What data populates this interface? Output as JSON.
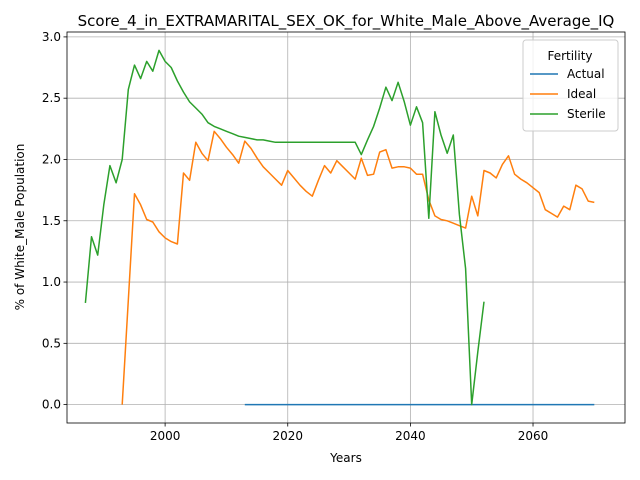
{
  "chart_data": {
    "type": "line",
    "title": "Score_4_in_EXTRAMARITAL_SEX_OK_for_White_Male_Above_Average_IQ",
    "xlabel": "Years",
    "ylabel": "% of White_Male Population",
    "xlim": [
      1984,
      2075
    ],
    "ylim": [
      -0.15,
      3.04
    ],
    "xticks": [
      2000,
      2020,
      2040,
      2060
    ],
    "yticks": [
      0.0,
      0.5,
      1.0,
      1.5,
      2.0,
      2.5,
      3.0
    ],
    "xtick_labels": [
      "2000",
      "2020",
      "2040",
      "2060"
    ],
    "ytick_labels": [
      "0.0",
      "0.5",
      "1.0",
      "1.5",
      "2.0",
      "2.5",
      "3.0"
    ],
    "grid": true,
    "legend": {
      "title": "Fertility",
      "position": "top-right"
    },
    "series": [
      {
        "name": "Actual",
        "color": "#1f77b4",
        "points": [
          [
            2013,
            0.0
          ],
          [
            2070,
            0.0
          ]
        ]
      },
      {
        "name": "Ideal",
        "color": "#ff7f0e",
        "points": [
          [
            1993,
            0.0
          ],
          [
            1994,
            0.85
          ],
          [
            1995,
            1.72
          ],
          [
            1996,
            1.63
          ],
          [
            1997,
            1.51
          ],
          [
            1998,
            1.49
          ],
          [
            1999,
            1.41
          ],
          [
            2000,
            1.36
          ],
          [
            2001,
            1.33
          ],
          [
            2002,
            1.31
          ],
          [
            2003,
            1.89
          ],
          [
            2004,
            1.83
          ],
          [
            2005,
            2.14
          ],
          [
            2006,
            2.05
          ],
          [
            2007,
            1.99
          ],
          [
            2008,
            2.23
          ],
          [
            2009,
            2.17
          ],
          [
            2010,
            2.1
          ],
          [
            2011,
            2.04
          ],
          [
            2012,
            1.97
          ],
          [
            2013,
            2.15
          ],
          [
            2014,
            2.09
          ],
          [
            2015,
            2.01
          ],
          [
            2016,
            1.94
          ],
          [
            2017,
            1.89
          ],
          [
            2018,
            1.84
          ],
          [
            2019,
            1.79
          ],
          [
            2020,
            1.91
          ],
          [
            2021,
            1.85
          ],
          [
            2022,
            1.79
          ],
          [
            2023,
            1.74
          ],
          [
            2024,
            1.7
          ],
          [
            2025,
            1.83
          ],
          [
            2026,
            1.95
          ],
          [
            2027,
            1.89
          ],
          [
            2028,
            1.99
          ],
          [
            2029,
            1.94
          ],
          [
            2030,
            1.89
          ],
          [
            2031,
            1.84
          ],
          [
            2032,
            2.01
          ],
          [
            2033,
            1.87
          ],
          [
            2034,
            1.88
          ],
          [
            2035,
            2.06
          ],
          [
            2036,
            2.08
          ],
          [
            2037,
            1.93
          ],
          [
            2038,
            1.94
          ],
          [
            2039,
            1.94
          ],
          [
            2040,
            1.93
          ],
          [
            2041,
            1.88
          ],
          [
            2042,
            1.88
          ],
          [
            2043,
            1.67
          ],
          [
            2044,
            1.54
          ],
          [
            2045,
            1.51
          ],
          [
            2046,
            1.5
          ],
          [
            2047,
            1.48
          ],
          [
            2048,
            1.46
          ],
          [
            2049,
            1.44
          ],
          [
            2050,
            1.7
          ],
          [
            2051,
            1.54
          ],
          [
            2052,
            1.91
          ],
          [
            2053,
            1.89
          ],
          [
            2054,
            1.85
          ],
          [
            2055,
            1.96
          ],
          [
            2056,
            2.03
          ],
          [
            2057,
            1.88
          ],
          [
            2058,
            1.84
          ],
          [
            2059,
            1.81
          ],
          [
            2060,
            1.77
          ],
          [
            2061,
            1.73
          ],
          [
            2062,
            1.59
          ],
          [
            2063,
            1.56
          ],
          [
            2064,
            1.53
          ],
          [
            2065,
            1.62
          ],
          [
            2066,
            1.59
          ],
          [
            2067,
            1.79
          ],
          [
            2068,
            1.76
          ],
          [
            2069,
            1.66
          ],
          [
            2070,
            1.65
          ]
        ]
      },
      {
        "name": "Sterile",
        "color": "#2ca02c",
        "points": [
          [
            1987,
            0.83
          ],
          [
            1988,
            1.37
          ],
          [
            1989,
            1.22
          ],
          [
            1990,
            1.63
          ],
          [
            1991,
            1.95
          ],
          [
            1992,
            1.81
          ],
          [
            1993,
            2.0
          ],
          [
            1994,
            2.57
          ],
          [
            1995,
            2.77
          ],
          [
            1996,
            2.66
          ],
          [
            1997,
            2.8
          ],
          [
            1998,
            2.72
          ],
          [
            1999,
            2.89
          ],
          [
            2000,
            2.8
          ],
          [
            2001,
            2.75
          ],
          [
            2002,
            2.64
          ],
          [
            2003,
            2.55
          ],
          [
            2004,
            2.47
          ],
          [
            2005,
            2.42
          ],
          [
            2006,
            2.37
          ],
          [
            2007,
            2.3
          ],
          [
            2008,
            2.27
          ],
          [
            2009,
            2.25
          ],
          [
            2010,
            2.23
          ],
          [
            2011,
            2.21
          ],
          [
            2012,
            2.19
          ],
          [
            2013,
            2.18
          ],
          [
            2014,
            2.17
          ],
          [
            2015,
            2.16
          ],
          [
            2016,
            2.16
          ],
          [
            2017,
            2.15
          ],
          [
            2018,
            2.14
          ],
          [
            2020,
            2.14
          ],
          [
            2025,
            2.14
          ],
          [
            2030,
            2.14
          ],
          [
            2031,
            2.14
          ],
          [
            2032,
            2.04
          ],
          [
            2033,
            2.16
          ],
          [
            2034,
            2.27
          ],
          [
            2035,
            2.42
          ],
          [
            2036,
            2.59
          ],
          [
            2037,
            2.48
          ],
          [
            2038,
            2.63
          ],
          [
            2039,
            2.47
          ],
          [
            2040,
            2.28
          ],
          [
            2041,
            2.43
          ],
          [
            2042,
            2.3
          ],
          [
            2043,
            1.52
          ],
          [
            2044,
            2.39
          ],
          [
            2045,
            2.2
          ],
          [
            2046,
            2.05
          ],
          [
            2047,
            2.2
          ],
          [
            2048,
            1.55
          ],
          [
            2049,
            1.11
          ],
          [
            2050,
            0.0
          ],
          [
            2051,
            0.43
          ],
          [
            2052,
            0.84
          ]
        ]
      }
    ]
  }
}
